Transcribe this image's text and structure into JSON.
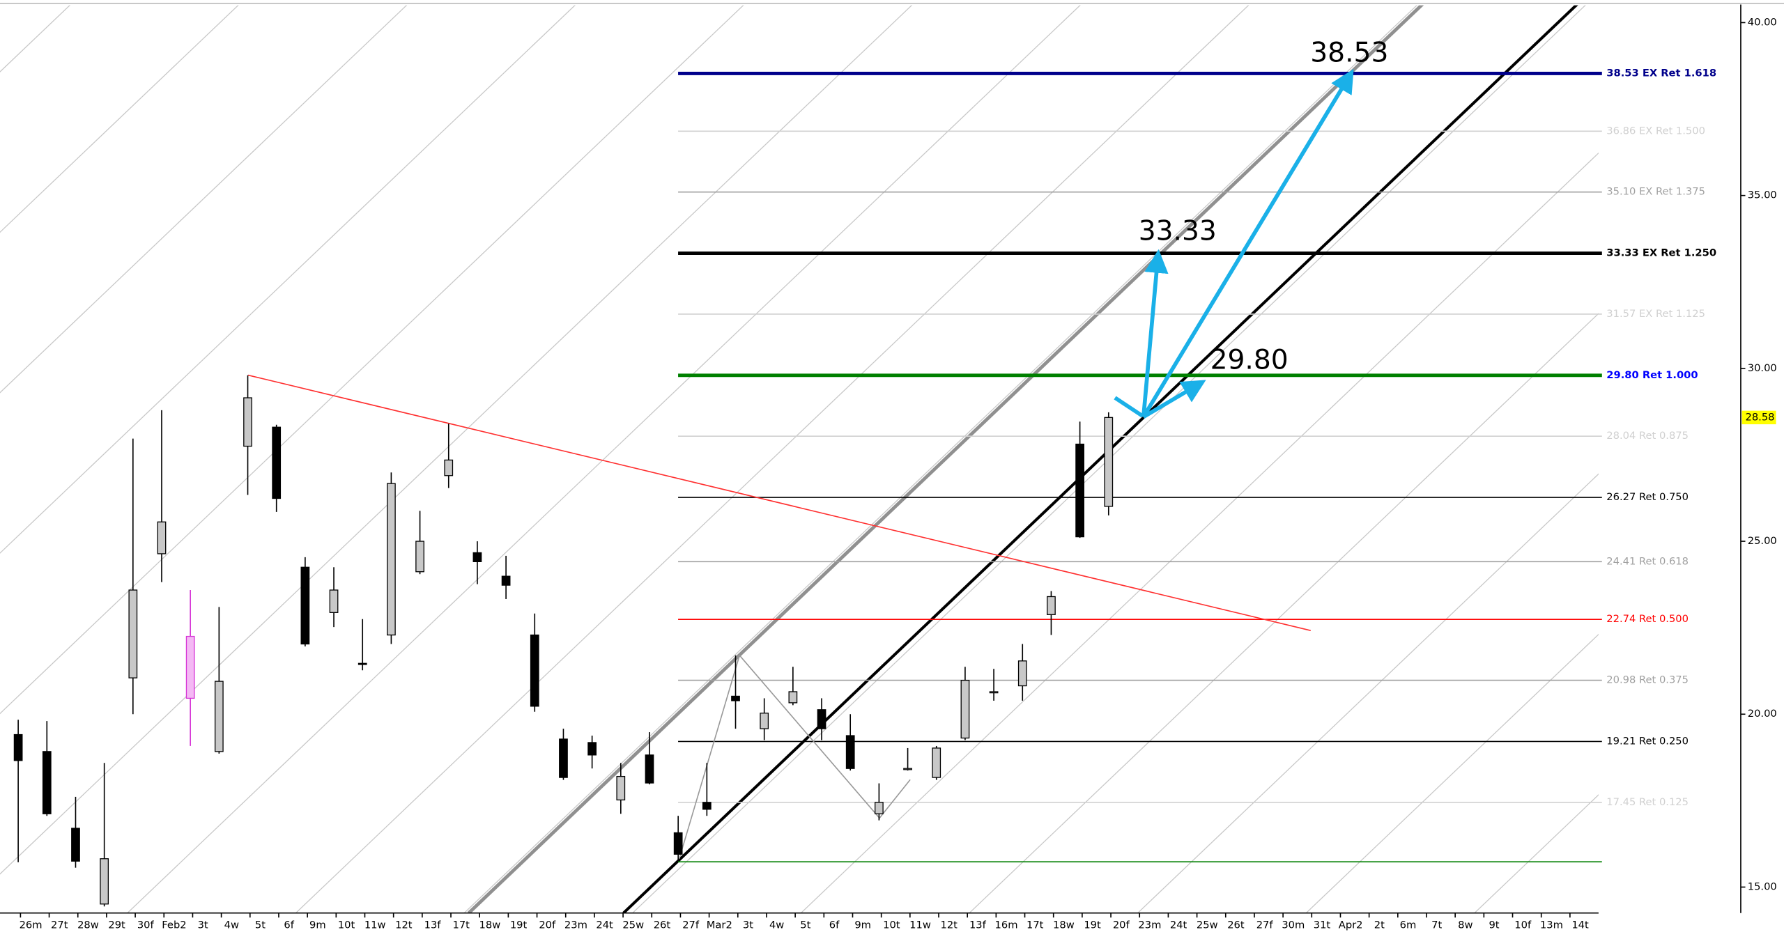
{
  "chart_data": {
    "type": "candlestick",
    "categories": [
      "26m",
      "27t",
      "28w",
      "29t",
      "30f",
      "Feb2",
      "3t",
      "4w",
      "5t",
      "6f",
      "9m",
      "10t",
      "11w",
      "12t",
      "13f",
      "17t",
      "18w",
      "19t",
      "20f",
      "23m",
      "24t",
      "25w",
      "26t",
      "27f",
      "Mar2",
      "3t",
      "4w",
      "5t",
      "6f",
      "9m",
      "10t",
      "11w",
      "12t",
      "13f",
      "16m",
      "17t",
      "18w",
      "19t",
      "20f",
      "23m",
      "24t",
      "25w",
      "26t",
      "27f",
      "30m",
      "31t",
      "Apr2",
      "2t",
      "6m",
      "7t",
      "8w",
      "9t",
      "10f",
      "13m",
      "14t"
    ],
    "open": [
      19.41,
      18.92,
      16.7,
      14.51,
      21.05,
      24.64,
      20.46,
      18.92,
      27.75,
      28.3,
      24.25,
      22.94,
      21.47,
      22.29,
      24.12,
      26.9,
      24.67,
      23.99,
      22.29,
      19.28,
      19.18,
      17.52,
      18.82,
      16.57,
      17.45,
      20.52,
      19.58,
      20.33,
      20.13,
      19.38,
      17.12,
      18.4,
      18.17,
      19.31,
      20.62,
      20.82,
      22.88,
      27.81,
      26.01,
      null,
      null,
      null,
      null,
      null,
      null,
      null,
      null,
      null,
      null,
      null,
      null,
      null,
      null,
      null,
      null
    ],
    "high": [
      19.84,
      19.8,
      17.61,
      18.59,
      27.97,
      28.79,
      23.59,
      23.1,
      29.8,
      28.37,
      24.54,
      24.25,
      22.75,
      26.99,
      25.88,
      28.4,
      25.0,
      24.58,
      22.91,
      19.58,
      19.38,
      18.59,
      19.48,
      17.06,
      18.59,
      21.7,
      20.46,
      21.37,
      20.46,
      20.0,
      18.0,
      19.02,
      19.08,
      21.37,
      21.31,
      22.03,
      23.56,
      28.46,
      28.73,
      null,
      null,
      null,
      null,
      null,
      null,
      null,
      null,
      null,
      null,
      null,
      null,
      null,
      null,
      null,
      null
    ],
    "low": [
      15.72,
      17.06,
      15.56,
      14.44,
      20.0,
      23.82,
      19.08,
      18.86,
      26.34,
      25.85,
      21.96,
      22.52,
      21.27,
      22.03,
      24.05,
      26.54,
      23.76,
      23.33,
      20.07,
      18.1,
      18.43,
      17.12,
      17.97,
      15.75,
      17.06,
      19.58,
      19.25,
      20.26,
      19.25,
      18.37,
      16.93,
      18.37,
      18.1,
      19.25,
      20.39,
      20.39,
      22.29,
      25.1,
      25.75,
      null,
      null,
      null,
      null,
      null,
      null,
      null,
      null,
      null,
      null,
      null,
      null,
      null,
      null,
      null,
      null
    ],
    "close": [
      18.66,
      17.12,
      15.75,
      15.82,
      23.59,
      25.56,
      22.25,
      20.95,
      29.15,
      26.24,
      22.03,
      23.59,
      21.44,
      26.67,
      25.0,
      27.35,
      24.41,
      23.73,
      20.23,
      18.17,
      18.82,
      18.2,
      18.01,
      15.95,
      17.25,
      20.39,
      20.03,
      20.65,
      19.58,
      18.43,
      17.45,
      18.43,
      19.02,
      20.98,
      20.65,
      21.54,
      23.4,
      25.13,
      28.58,
      null,
      null,
      null,
      null,
      null,
      null,
      null,
      null,
      null,
      null,
      null,
      null,
      null,
      null,
      null,
      null
    ],
    "up_color": "#c8c8c8",
    "down_color": "#000000",
    "highlight": {
      "index": 6,
      "color": "#d633d6"
    },
    "ylim": [
      14.25,
      40.5
    ],
    "yticks": [
      {
        "value": 15,
        "label": "15.00"
      },
      {
        "value": 20,
        "label": "20.00"
      },
      {
        "value": 25,
        "label": "25.00"
      },
      {
        "value": 30,
        "label": "30.00"
      },
      {
        "value": 35,
        "label": "35.00"
      },
      {
        "value": 40,
        "label": "40.00"
      }
    ],
    "last_price": 28.58,
    "last_price_color": "#ffff00",
    "levels": [
      {
        "value": 38.53,
        "label": "38.53 EX Ret 1.618",
        "color": "#00008b",
        "width": 3
      },
      {
        "value": 36.86,
        "label": "36.86 EX Ret 1.500",
        "color": "#d0d0d0",
        "width": 1
      },
      {
        "value": 35.1,
        "label": "35.10 EX Ret 1.375",
        "color": "#a0a0a0",
        "width": 1
      },
      {
        "value": 33.33,
        "label": "33.33 EX Ret 1.250",
        "color": "#000000",
        "width": 3
      },
      {
        "value": 31.57,
        "label": "31.57 EX Ret 1.125",
        "color": "#d0d0d0",
        "width": 1
      },
      {
        "value": 29.8,
        "label": "29.80 Ret 1.000",
        "color": "#008000",
        "width": 3,
        "label_color": "#0000ff"
      },
      {
        "value": 28.04,
        "label": "28.04 Ret 0.875",
        "color": "#d0d0d0",
        "width": 1
      },
      {
        "value": 26.27,
        "label": "26.27 Ret 0.750",
        "color": "#000000",
        "width": 1
      },
      {
        "value": 24.41,
        "label": "24.41 Ret 0.618",
        "color": "#a0a0a0",
        "width": 1
      },
      {
        "value": 22.74,
        "label": "22.74 Ret 0.500",
        "color": "#ff0000",
        "width": 1
      },
      {
        "value": 20.98,
        "label": "20.98 Ret 0.375",
        "color": "#a0a0a0",
        "width": 1
      },
      {
        "value": 19.21,
        "label": "19.21 Ret 0.250",
        "color": "#000000",
        "width": 1
      },
      {
        "value": 17.45,
        "label": "17.45 Ret 0.125",
        "color": "#d0d0d0",
        "width": 1
      },
      {
        "value": 15.73,
        "color": "#008000",
        "width": 1
      }
    ],
    "annotations": [
      "38.53",
      "33.33",
      "29.80"
    ]
  }
}
